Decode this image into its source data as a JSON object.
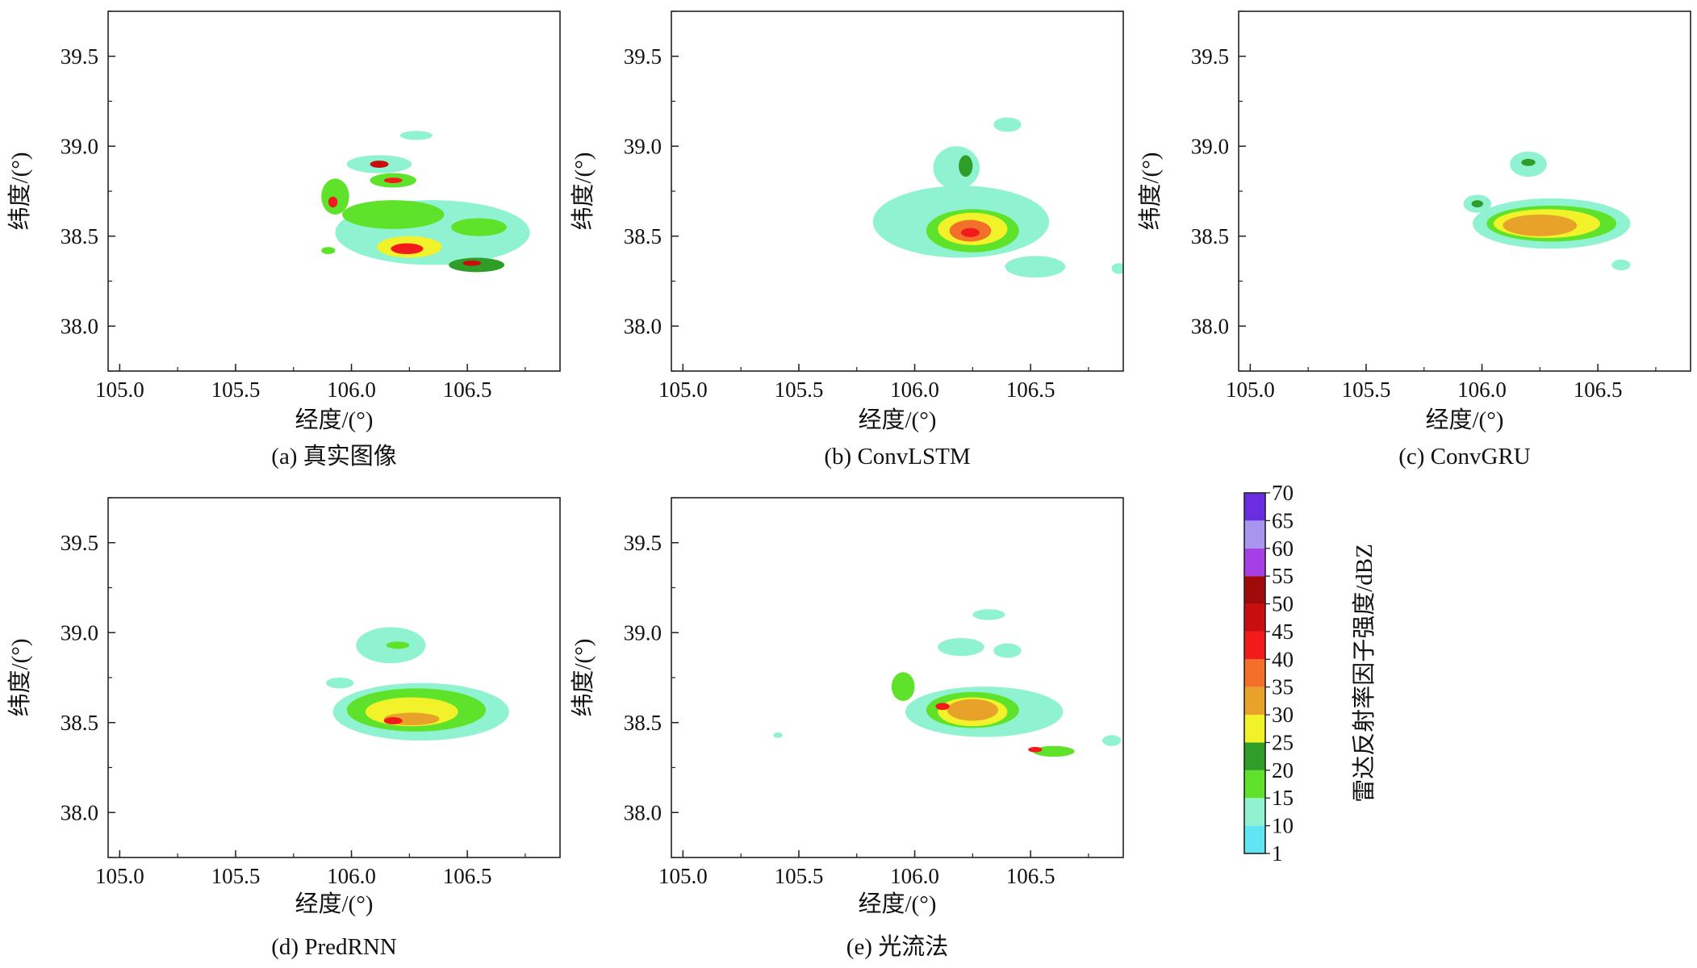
{
  "figure": {
    "colorbar": {
      "label": "雷达反射率因子强度/dBZ",
      "ticks": [
        "70",
        "65",
        "60",
        "55",
        "50",
        "45",
        "40",
        "35",
        "30",
        "25",
        "20",
        "15",
        "10",
        "1"
      ],
      "bins": [
        {
          "range": "1-10",
          "color": "#5fe6f2"
        },
        {
          "range": "10-15",
          "color": "#8ff2d0"
        },
        {
          "range": "15-20",
          "color": "#5fe22a"
        },
        {
          "range": "20-25",
          "color": "#2e9e28"
        },
        {
          "range": "25-30",
          "color": "#f2f22a"
        },
        {
          "range": "30-35",
          "color": "#e8a22a"
        },
        {
          "range": "35-40",
          "color": "#f2702a"
        },
        {
          "range": "40-45",
          "color": "#f21a1a"
        },
        {
          "range": "45-50",
          "color": "#c80e0e"
        },
        {
          "range": "50-55",
          "color": "#a00a0a"
        },
        {
          "range": "55-60",
          "color": "#a640e6"
        },
        {
          "range": "60-65",
          "color": "#a896ee"
        },
        {
          "range": "65-70",
          "color": "#6a2ee0"
        }
      ]
    }
  },
  "chart_data": [
    {
      "type": "heatmap",
      "title": "(a) 真实图像",
      "xlabel": "经度/(°)",
      "ylabel": "纬度/(°)",
      "xlim": [
        104.95,
        106.9
      ],
      "ylim": [
        37.75,
        39.75
      ],
      "xticks": [
        "105.0",
        "105.5",
        "106.0",
        "106.5"
      ],
      "yticks": [
        "38.0",
        "38.5",
        "39.0",
        "39.5"
      ],
      "cells": [
        {
          "lon": 106.35,
          "lat": 38.52,
          "rx": 0.42,
          "ry": 0.18,
          "dbz": 10
        },
        {
          "lon": 106.18,
          "lat": 38.62,
          "rx": 0.22,
          "ry": 0.08,
          "dbz": 18
        },
        {
          "lon": 106.25,
          "lat": 38.44,
          "rx": 0.14,
          "ry": 0.06,
          "dbz": 25
        },
        {
          "lon": 106.24,
          "lat": 38.43,
          "rx": 0.07,
          "ry": 0.03,
          "dbz": 40
        },
        {
          "lon": 106.54,
          "lat": 38.34,
          "rx": 0.12,
          "ry": 0.04,
          "dbz": 20
        },
        {
          "lon": 106.52,
          "lat": 38.35,
          "rx": 0.04,
          "ry": 0.015,
          "dbz": 45
        },
        {
          "lon": 106.12,
          "lat": 38.9,
          "rx": 0.14,
          "ry": 0.05,
          "dbz": 12
        },
        {
          "lon": 106.12,
          "lat": 38.9,
          "rx": 0.04,
          "ry": 0.02,
          "dbz": 45
        },
        {
          "lon": 106.18,
          "lat": 38.81,
          "rx": 0.1,
          "ry": 0.04,
          "dbz": 15
        },
        {
          "lon": 106.18,
          "lat": 38.81,
          "rx": 0.04,
          "ry": 0.015,
          "dbz": 40
        },
        {
          "lon": 105.93,
          "lat": 38.72,
          "rx": 0.06,
          "ry": 0.1,
          "dbz": 18
        },
        {
          "lon": 105.92,
          "lat": 38.69,
          "rx": 0.02,
          "ry": 0.03,
          "dbz": 40
        },
        {
          "lon": 106.28,
          "lat": 39.06,
          "rx": 0.07,
          "ry": 0.025,
          "dbz": 12
        },
        {
          "lon": 106.55,
          "lat": 38.55,
          "rx": 0.12,
          "ry": 0.05,
          "dbz": 18
        },
        {
          "lon": 105.9,
          "lat": 38.42,
          "rx": 0.03,
          "ry": 0.02,
          "dbz": 15
        }
      ]
    },
    {
      "type": "heatmap",
      "title": "(b) ConvLSTM",
      "xlabel": "经度/(°)",
      "ylabel": "纬度/(°)",
      "xlim": [
        104.95,
        106.9
      ],
      "ylim": [
        37.75,
        39.75
      ],
      "xticks": [
        "105.0",
        "105.5",
        "106.0",
        "106.5"
      ],
      "yticks": [
        "38.0",
        "38.5",
        "39.0",
        "39.5"
      ],
      "cells": [
        {
          "lon": 106.2,
          "lat": 38.58,
          "rx": 0.38,
          "ry": 0.2,
          "dbz": 10
        },
        {
          "lon": 106.25,
          "lat": 38.53,
          "rx": 0.2,
          "ry": 0.12,
          "dbz": 18
        },
        {
          "lon": 106.25,
          "lat": 38.54,
          "rx": 0.15,
          "ry": 0.09,
          "dbz": 25
        },
        {
          "lon": 106.24,
          "lat": 38.53,
          "rx": 0.09,
          "ry": 0.06,
          "dbz": 35
        },
        {
          "lon": 106.24,
          "lat": 38.52,
          "rx": 0.04,
          "ry": 0.025,
          "dbz": 40
        },
        {
          "lon": 106.18,
          "lat": 38.88,
          "rx": 0.1,
          "ry": 0.12,
          "dbz": 12
        },
        {
          "lon": 106.22,
          "lat": 38.89,
          "rx": 0.03,
          "ry": 0.06,
          "dbz": 22
        },
        {
          "lon": 106.4,
          "lat": 39.12,
          "rx": 0.06,
          "ry": 0.04,
          "dbz": 10
        },
        {
          "lon": 106.52,
          "lat": 38.33,
          "rx": 0.13,
          "ry": 0.06,
          "dbz": 12
        },
        {
          "lon": 106.88,
          "lat": 38.32,
          "rx": 0.03,
          "ry": 0.03,
          "dbz": 12
        }
      ]
    },
    {
      "type": "heatmap",
      "title": "(c) ConvGRU",
      "xlabel": "经度/(°)",
      "ylabel": "纬度/(°)",
      "xlim": [
        104.95,
        106.9
      ],
      "ylim": [
        37.75,
        39.75
      ],
      "xticks": [
        "105.0",
        "105.5",
        "106.0",
        "106.5"
      ],
      "yticks": [
        "38.0",
        "38.5",
        "39.0",
        "39.5"
      ],
      "cells": [
        {
          "lon": 106.3,
          "lat": 38.57,
          "rx": 0.34,
          "ry": 0.14,
          "dbz": 10
        },
        {
          "lon": 106.3,
          "lat": 38.57,
          "rx": 0.28,
          "ry": 0.1,
          "dbz": 18
        },
        {
          "lon": 106.28,
          "lat": 38.57,
          "rx": 0.23,
          "ry": 0.08,
          "dbz": 25
        },
        {
          "lon": 106.25,
          "lat": 38.56,
          "rx": 0.16,
          "ry": 0.06,
          "dbz": 30
        },
        {
          "lon": 105.98,
          "lat": 38.68,
          "rx": 0.06,
          "ry": 0.05,
          "dbz": 12
        },
        {
          "lon": 105.98,
          "lat": 38.68,
          "rx": 0.025,
          "ry": 0.02,
          "dbz": 20
        },
        {
          "lon": 106.2,
          "lat": 38.9,
          "rx": 0.08,
          "ry": 0.07,
          "dbz": 12
        },
        {
          "lon": 106.2,
          "lat": 38.91,
          "rx": 0.03,
          "ry": 0.02,
          "dbz": 20
        },
        {
          "lon": 106.6,
          "lat": 38.34,
          "rx": 0.04,
          "ry": 0.03,
          "dbz": 10
        }
      ]
    },
    {
      "type": "heatmap",
      "title": "(d) PredRNN",
      "xlabel": "经度/(°)",
      "ylabel": "纬度/(°)",
      "xlim": [
        104.95,
        106.9
      ],
      "ylim": [
        37.75,
        39.75
      ],
      "xticks": [
        "105.0",
        "105.5",
        "106.0",
        "106.5"
      ],
      "yticks": [
        "38.0",
        "38.5",
        "39.0",
        "39.5"
      ],
      "cells": [
        {
          "lon": 106.3,
          "lat": 38.56,
          "rx": 0.38,
          "ry": 0.16,
          "dbz": 10
        },
        {
          "lon": 106.28,
          "lat": 38.57,
          "rx": 0.3,
          "ry": 0.12,
          "dbz": 18
        },
        {
          "lon": 106.26,
          "lat": 38.56,
          "rx": 0.2,
          "ry": 0.08,
          "dbz": 25
        },
        {
          "lon": 106.26,
          "lat": 38.52,
          "rx": 0.12,
          "ry": 0.035,
          "dbz": 30
        },
        {
          "lon": 106.18,
          "lat": 38.51,
          "rx": 0.04,
          "ry": 0.02,
          "dbz": 40
        },
        {
          "lon": 106.17,
          "lat": 38.93,
          "rx": 0.15,
          "ry": 0.1,
          "dbz": 12
        },
        {
          "lon": 106.2,
          "lat": 38.93,
          "rx": 0.05,
          "ry": 0.02,
          "dbz": 18
        },
        {
          "lon": 105.95,
          "lat": 38.72,
          "rx": 0.06,
          "ry": 0.03,
          "dbz": 12
        }
      ]
    },
    {
      "type": "heatmap",
      "title": "(e) 光流法",
      "xlabel": "经度/(°)",
      "ylabel": "纬度/(°)",
      "xlim": [
        104.95,
        106.9
      ],
      "ylim": [
        37.75,
        39.75
      ],
      "xticks": [
        "105.0",
        "105.5",
        "106.0",
        "106.5"
      ],
      "yticks": [
        "38.0",
        "38.5",
        "39.0",
        "39.5"
      ],
      "cells": [
        {
          "lon": 106.3,
          "lat": 38.56,
          "rx": 0.34,
          "ry": 0.14,
          "dbz": 10
        },
        {
          "lon": 106.25,
          "lat": 38.57,
          "rx": 0.2,
          "ry": 0.1,
          "dbz": 18
        },
        {
          "lon": 106.25,
          "lat": 38.56,
          "rx": 0.15,
          "ry": 0.08,
          "dbz": 25
        },
        {
          "lon": 106.25,
          "lat": 38.57,
          "rx": 0.11,
          "ry": 0.06,
          "dbz": 30
        },
        {
          "lon": 106.12,
          "lat": 38.59,
          "rx": 0.03,
          "ry": 0.02,
          "dbz": 40
        },
        {
          "lon": 106.6,
          "lat": 38.34,
          "rx": 0.09,
          "ry": 0.03,
          "dbz": 18
        },
        {
          "lon": 106.52,
          "lat": 38.35,
          "rx": 0.03,
          "ry": 0.015,
          "dbz": 40
        },
        {
          "lon": 106.2,
          "lat": 38.92,
          "rx": 0.1,
          "ry": 0.05,
          "dbz": 12
        },
        {
          "lon": 106.32,
          "lat": 39.1,
          "rx": 0.07,
          "ry": 0.03,
          "dbz": 12
        },
        {
          "lon": 105.95,
          "lat": 38.7,
          "rx": 0.05,
          "ry": 0.08,
          "dbz": 15
        },
        {
          "lon": 106.4,
          "lat": 38.9,
          "rx": 0.06,
          "ry": 0.04,
          "dbz": 12
        },
        {
          "lon": 106.85,
          "lat": 38.4,
          "rx": 0.04,
          "ry": 0.03,
          "dbz": 12
        },
        {
          "lon": 105.41,
          "lat": 38.43,
          "rx": 0.02,
          "ry": 0.015,
          "dbz": 10
        }
      ]
    }
  ]
}
